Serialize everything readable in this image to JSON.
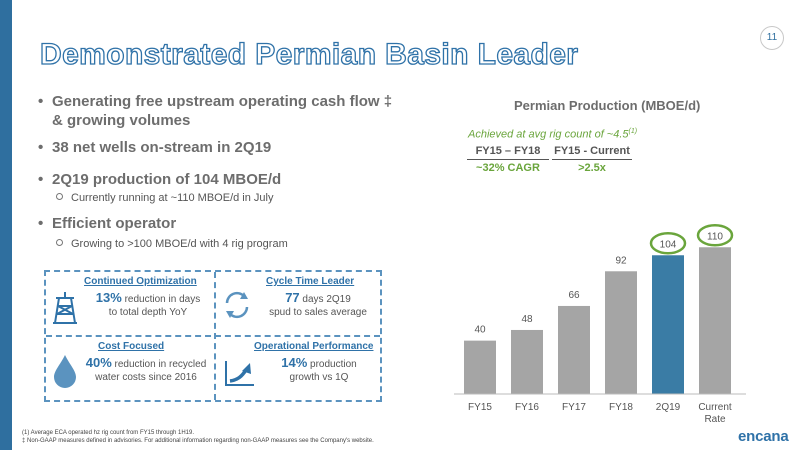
{
  "page": {
    "number": "11",
    "title": "Demonstrated Permian Basin Leader"
  },
  "colors": {
    "accent_blue": "#2f72a8",
    "bar_gray": "#a5a5a5",
    "bar_blue": "#3a7ca5",
    "green": "#6aa53c"
  },
  "bullets": [
    {
      "text": "Generating free upstream operating cash flow ‡ & growing volumes",
      "line1": "Generating free upstream operating cash flow ‡",
      "line2": "& growing volumes"
    },
    {
      "text": "38 net wells on-stream in 2Q19"
    },
    {
      "text": "2Q19 production of 104 MBOE/d",
      "sub": "Currently running at ~110 MBOE/d in July"
    },
    {
      "text": "Efficient operator",
      "sub": "Growing to >100 MBOE/d with 4 rig program"
    }
  ],
  "highlights": {
    "optimization": {
      "heading": "Continued Optimization",
      "big": "13%",
      "rest1": " reduction in days",
      "rest2": "to total depth YoY",
      "icon": "drilling-rig-icon"
    },
    "cycle": {
      "heading": "Cycle Time Leader",
      "big": "77",
      "rest1": " days 2Q19",
      "rest2": "spud to sales average",
      "icon": "cycle-arrows-icon"
    },
    "cost": {
      "heading": "Cost Focused",
      "big": "40%",
      "rest1": " reduction in recycled",
      "rest2": "water costs since 2016",
      "icon": "water-drop-icon"
    },
    "operational": {
      "heading": "Operational Performance",
      "big": "14%",
      "rest1": " production",
      "rest2": "growth vs 1Q",
      "icon": "growth-arrow-icon"
    }
  },
  "chart_data": {
    "type": "bar",
    "title": "Permian Production (MBOE/d)",
    "categories": [
      "FY15",
      "FY16",
      "FY17",
      "FY18",
      "2Q19",
      "Current Rate"
    ],
    "values": [
      40,
      48,
      66,
      92,
      104,
      110
    ],
    "value_labels": [
      "40",
      "48",
      "66",
      "92",
      "104",
      "110"
    ],
    "highlighted": [
      "2Q19"
    ],
    "circled_labels": [
      "104",
      "110"
    ],
    "annotation": {
      "text": "Achieved at avg rig count of ~4.5",
      "footnote_marker": "(1)"
    },
    "growth_table": [
      {
        "header": "FY15 – FY18",
        "value": "~32% CAGR"
      },
      {
        "header": "FY15 - Current",
        "value": ">2.5x"
      }
    ],
    "ylim": [
      0,
      120
    ],
    "grid": false
  },
  "footnotes": [
    "(1) Average ECA operated hz rig count from FY15 through 1H19.",
    "‡ Non-GAAP measures defined in advisories. For additional information regarding non-GAAP measures see the Company's website."
  ],
  "logo": "encana"
}
